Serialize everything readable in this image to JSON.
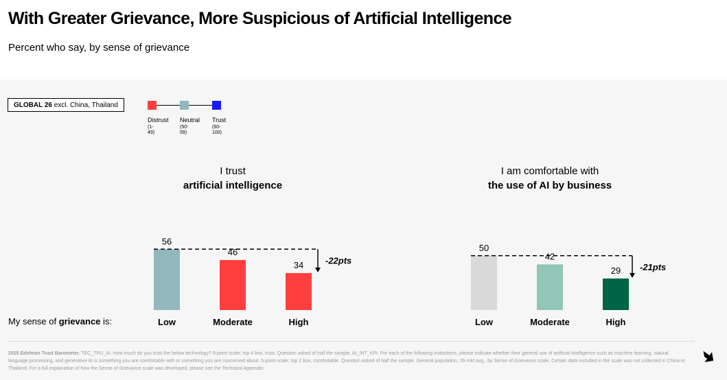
{
  "page": {
    "title": "With Greater Grievance, More Suspicious of Artificial Intelligence",
    "subtitle": "Percent who say, by sense of grievance"
  },
  "filter": {
    "region_bold": "GLOBAL 26",
    "region_rest": " excl. China, Thailand"
  },
  "legend": {
    "items": [
      {
        "label": "Distrust",
        "range": "(1-49)",
        "color": "#ff3e3e"
      },
      {
        "label": "Neutral",
        "range": "(50-59)",
        "color": "#92b7bd"
      },
      {
        "label": "Trust",
        "range": "(60-100)",
        "color": "#1a1aff"
      }
    ]
  },
  "row_label": {
    "prefix": "My sense of ",
    "bold": "grievance",
    "suffix": " is:"
  },
  "chart_data": [
    {
      "type": "bar",
      "title_line1": "I trust",
      "title_line2": "artificial intelligence",
      "categories": [
        "Low",
        "Moderate",
        "High"
      ],
      "values": [
        56,
        46,
        34
      ],
      "colors": [
        "#92b7bd",
        "#ff3e3e",
        "#ff3e3e"
      ],
      "change_label": "-22pts"
    },
    {
      "type": "bar",
      "title_line1": "I am comfortable with",
      "title_line2": "the use of AI by business",
      "categories": [
        "Low",
        "Moderate",
        "High"
      ],
      "values": [
        50,
        42,
        29
      ],
      "colors": [
        "#d9d9d9",
        "#92c6b8",
        "#006446"
      ],
      "change_label": "-21pts"
    }
  ],
  "footnote": {
    "bold": "2025 Edelman Trust Barometer.",
    "text": " TEC_TRU_AI. How much do you trust the below technology? 9-point scale; top 4 box, trust. Question asked of half the sample. AI_INT_KPI. For each of the following institutions, please indicate whether their general use of artificial intelligence such as machine learning, natural language processing, and generative AI is something you are comfortable with or something you are concerned about. 5-point scale; top 2 box, comfortable. Question asked of half the sample. General population, 26-mkt avg., by Sense of Grievance scale. Certain data included in the scale was not collected in China or Thailand. For a full explanation of how the Sense of Grievance scale was developed, please see the Technical Appendix."
  },
  "nav": {
    "next_icon": "arrow-down-right-icon"
  }
}
